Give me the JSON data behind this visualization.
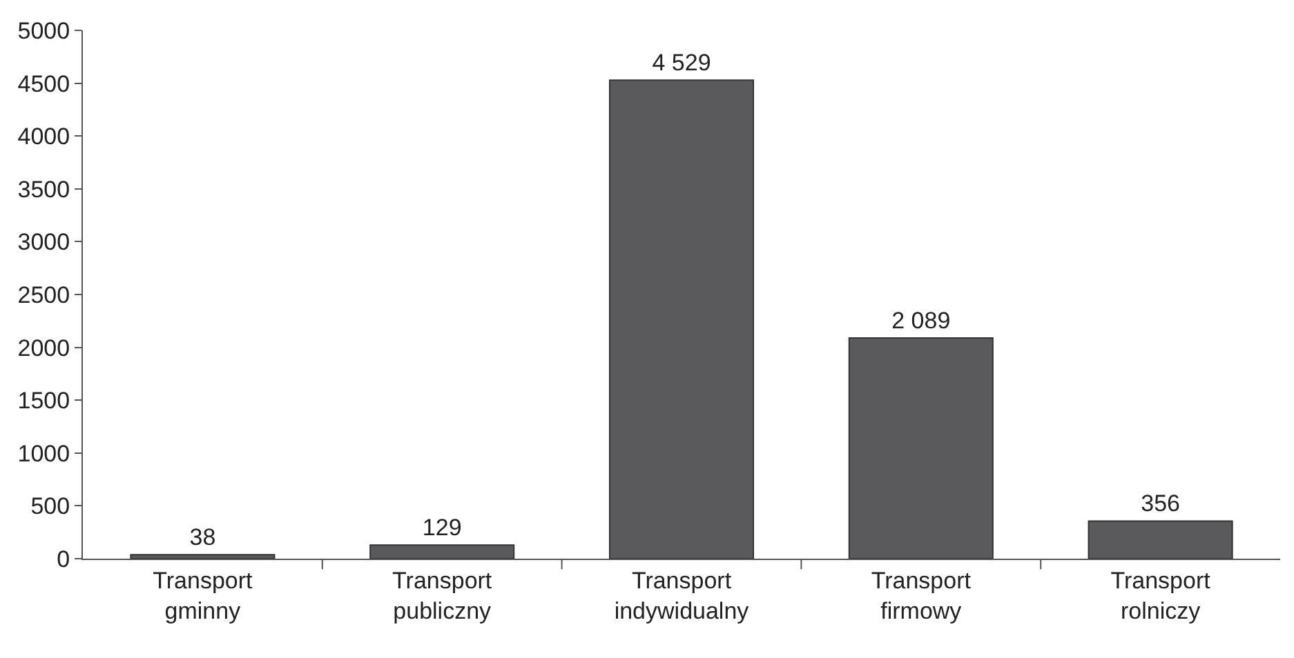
{
  "chart_data": {
    "type": "bar",
    "categories": [
      "Transport gminny",
      "Transport publiczny",
      "Transport indywidualny",
      "Transport firmowy",
      "Transport rolniczy"
    ],
    "values": [
      38,
      129,
      4529,
      2089,
      356
    ],
    "value_labels": [
      "38",
      "129",
      "4 529",
      "2 089",
      "356"
    ],
    "color": "#5a5a5c",
    "ylim": [
      0,
      5000
    ],
    "yticks": [
      0,
      500,
      1000,
      1500,
      2000,
      2500,
      3000,
      3500,
      4000,
      4500,
      5000
    ],
    "grid": false,
    "legend": false
  }
}
